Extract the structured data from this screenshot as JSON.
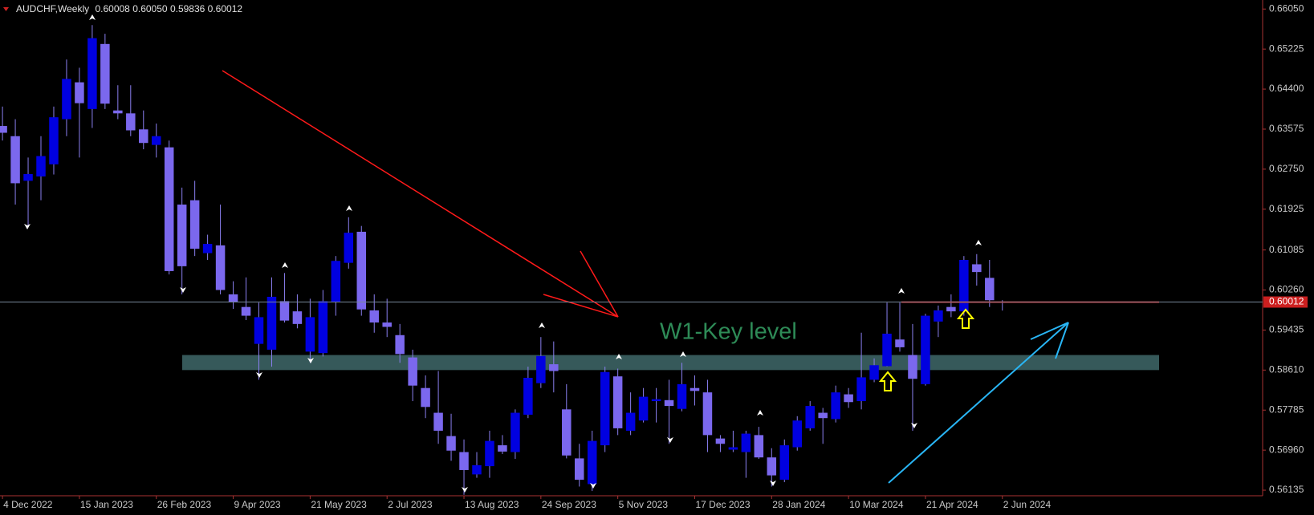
{
  "chart_data": {
    "type": "candlestick",
    "symbol": "AUDCHF,Weekly",
    "header_values": [
      "0.60008",
      "0.60050",
      "0.59836",
      "0.60012"
    ],
    "annotation": "W1-Key level",
    "up_color": "#0000e0",
    "down_color": "#7b68ee",
    "wick_color": "#8a7ff0",
    "key_zone": [
      0.5861,
      0.5892
    ],
    "key_zone_color": "#36595a",
    "key_line": 0.6001,
    "key_line_color": "#cc1f1f",
    "categories": [
      "4 Dec 2022",
      null,
      null,
      null,
      null,
      null,
      "15 Jan 2023",
      null,
      null,
      null,
      null,
      null,
      "26 Feb 2023",
      null,
      null,
      null,
      null,
      null,
      "9 Apr 2023",
      null,
      null,
      null,
      null,
      null,
      "21 May 2023",
      null,
      null,
      null,
      null,
      null,
      "2 Jul 2023",
      null,
      null,
      null,
      null,
      null,
      "13 Aug 2023",
      null,
      null,
      null,
      null,
      null,
      "24 Sep 2023",
      null,
      null,
      null,
      null,
      null,
      "5 Nov 2023",
      null,
      null,
      null,
      null,
      null,
      "17 Dec 2023",
      null,
      null,
      null,
      null,
      null,
      "28 Jan 2024",
      null,
      null,
      null,
      null,
      null,
      "10 Mar 2024",
      null,
      null,
      null,
      null,
      null,
      "21 Apr 2024",
      null,
      null,
      null,
      null,
      null,
      "2 Jun 2024"
    ],
    "open": [
      0.6364,
      0.6343,
      0.6251,
      0.626,
      0.6285,
      0.6378,
      0.6454,
      0.6399,
      0.6533,
      0.6396,
      0.639,
      0.6357,
      0.6325,
      0.632,
      0.6202,
      0.6211,
      0.6102,
      0.6118,
      0.6017,
      0.5991,
      0.5915,
      0.5903,
      0.6003,
      0.5982,
      0.5899,
      0.5896,
      0.6001,
      0.6082,
      0.6146,
      0.5984,
      0.5959,
      0.5933,
      0.5887,
      0.5824,
      0.5773,
      0.5725,
      0.5692,
      0.5646,
      0.5663,
      0.5706,
      0.5692,
      0.5769,
      0.5834,
      0.5873,
      0.578,
      0.5679,
      0.5626,
      0.5706,
      0.5848,
      0.5736,
      0.5757,
      0.5797,
      0.5799,
      0.5781,
      0.5824,
      0.5815,
      0.572,
      0.5697,
      0.5692,
      0.5727,
      0.5681,
      0.5635,
      0.5702,
      0.5741,
      0.5773,
      0.576,
      0.5811,
      0.5797,
      0.5841,
      0.5869,
      0.5924,
      0.5892,
      0.5832,
      0.5961,
      0.5991,
      0.5982,
      0.6079,
      0.6051,
      0.60008
    ],
    "high": [
      0.6404,
      0.6378,
      0.6299,
      0.6343,
      0.6404,
      0.6501,
      0.6484,
      0.6572,
      0.6554,
      0.6448,
      0.6448,
      0.6396,
      0.6369,
      0.6334,
      0.6237,
      0.6251,
      0.614,
      0.6202,
      0.6044,
      0.6052,
      0.6,
      0.6052,
      0.6061,
      0.6017,
      0.6008,
      0.6026,
      0.6096,
      0.6176,
      0.6158,
      0.6017,
      0.6008,
      0.5956,
      0.5903,
      0.585,
      0.5859,
      0.5771,
      0.5718,
      0.5692,
      0.5736,
      0.5727,
      0.578,
      0.5868,
      0.5929,
      0.592,
      0.5832,
      0.5709,
      0.5736,
      0.5868,
      0.5864,
      0.5815,
      0.5824,
      0.5824,
      0.5841,
      0.5876,
      0.585,
      0.5841,
      0.5727,
      0.5736,
      0.5736,
      0.5744,
      0.57,
      0.5718,
      0.5766,
      0.5797,
      0.5783,
      0.5829,
      0.5824,
      0.5938,
      0.5885,
      0.6,
      0.6,
      0.5956,
      0.5977,
      0.5994,
      0.6017,
      0.6096,
      0.61,
      0.6088,
      0.6005
    ],
    "low": [
      0.6334,
      0.6202,
      0.6158,
      0.6211,
      0.6264,
      0.6343,
      0.6299,
      0.636,
      0.6399,
      0.6378,
      0.6343,
      0.6316,
      0.6299,
      0.6058,
      0.6017,
      0.6096,
      0.6088,
      0.6017,
      0.5987,
      0.5964,
      0.5841,
      0.5868,
      0.5959,
      0.5947,
      0.5876,
      0.5889,
      0.5973,
      0.607,
      0.5973,
      0.5938,
      0.5929,
      0.5876,
      0.5797,
      0.5762,
      0.5709,
      0.5674,
      0.5604,
      0.5639,
      0.5639,
      0.5688,
      0.5678,
      0.5762,
      0.5824,
      0.5815,
      0.5679,
      0.5621,
      0.5612,
      0.5692,
      0.5727,
      0.5727,
      0.5753,
      0.5753,
      0.5709,
      0.5776,
      0.5788,
      0.5692,
      0.5692,
      0.5692,
      0.5639,
      0.5678,
      0.5621,
      0.563,
      0.5695,
      0.5736,
      0.5709,
      0.5753,
      0.5783,
      0.578,
      0.5836,
      0.5868,
      0.5899,
      0.5736,
      0.5829,
      0.5929,
      0.597,
      0.5973,
      0.6035,
      0.5991,
      0.59836
    ],
    "close": [
      0.635,
      0.6246,
      0.6265,
      0.6302,
      0.6382,
      0.6461,
      0.6411,
      0.6545,
      0.641,
      0.639,
      0.6355,
      0.6329,
      0.6343,
      0.6065,
      0.6075,
      0.6111,
      0.6121,
      0.6026,
      0.6001,
      0.5973,
      0.597,
      0.6012,
      0.5963,
      0.5956,
      0.597,
      0.6003,
      0.6086,
      0.6144,
      0.5986,
      0.5959,
      0.595,
      0.5894,
      0.5829,
      0.5785,
      0.5736,
      0.5695,
      0.5655,
      0.5665,
      0.5715,
      0.5693,
      0.5773,
      0.5845,
      0.589,
      0.5859,
      0.5685,
      0.5635,
      0.5715,
      0.5857,
      0.5741,
      0.5773,
      0.5806,
      0.5801,
      0.5787,
      0.5832,
      0.5818,
      0.5727,
      0.5709,
      0.5702,
      0.573,
      0.5681,
      0.5644,
      0.5706,
      0.5757,
      0.5787,
      0.5762,
      0.5815,
      0.5795,
      0.5846,
      0.5871,
      0.5936,
      0.5908,
      0.5843,
      0.5973,
      0.5984,
      0.5982,
      0.6088,
      0.6063,
      0.6005,
      0.60012
    ],
    "ylim": [
      0.5602,
      0.6617
    ],
    "yticks": [
      {
        "value": 0.6605,
        "label": "0.66050"
      },
      0.65225,
      {
        "value": 0.644,
        "label": "0.64400"
      },
      0.63575,
      {
        "value": 0.6275,
        "label": "0.62750"
      },
      0.61925,
      0.61085,
      {
        "value": 0.6026,
        "label": "0.60260"
      },
      0.59435,
      {
        "value": 0.5861,
        "label": "0.58610"
      },
      0.57785,
      {
        "value": 0.5696,
        "label": "0.56960"
      },
      0.56135
    ],
    "price_line_color": "#778899"
  }
}
